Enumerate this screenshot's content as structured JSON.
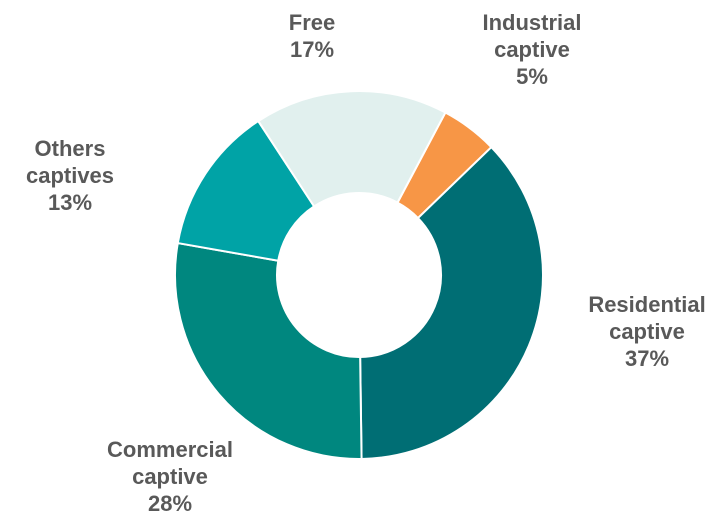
{
  "chart_data": {
    "type": "donut",
    "title": "",
    "slices": [
      {
        "name": "Industrial captive",
        "label_lines": [
          "Industrial",
          "captive"
        ],
        "value": 5,
        "value_label": "5%",
        "color": "#F79646"
      },
      {
        "name": "Residential captive",
        "label_lines": [
          "Residential",
          "captive"
        ],
        "value": 37,
        "value_label": "37%",
        "color": "#006E74"
      },
      {
        "name": "Commercial captive",
        "label_lines": [
          "Commercial",
          "captive"
        ],
        "value": 28,
        "value_label": "28%",
        "color": "#00877F"
      },
      {
        "name": "Others captives",
        "label_lines": [
          "Others",
          "captives"
        ],
        "value": 13,
        "value_label": "13%",
        "color": "#00A3A6"
      },
      {
        "name": "Free",
        "label_lines": [
          "Free"
        ],
        "value": 17,
        "value_label": "17%",
        "color": "#E1F0EE"
      }
    ],
    "start_angle_deg": 28,
    "direction": "clockwise",
    "legend": "none",
    "labels": "outside"
  }
}
